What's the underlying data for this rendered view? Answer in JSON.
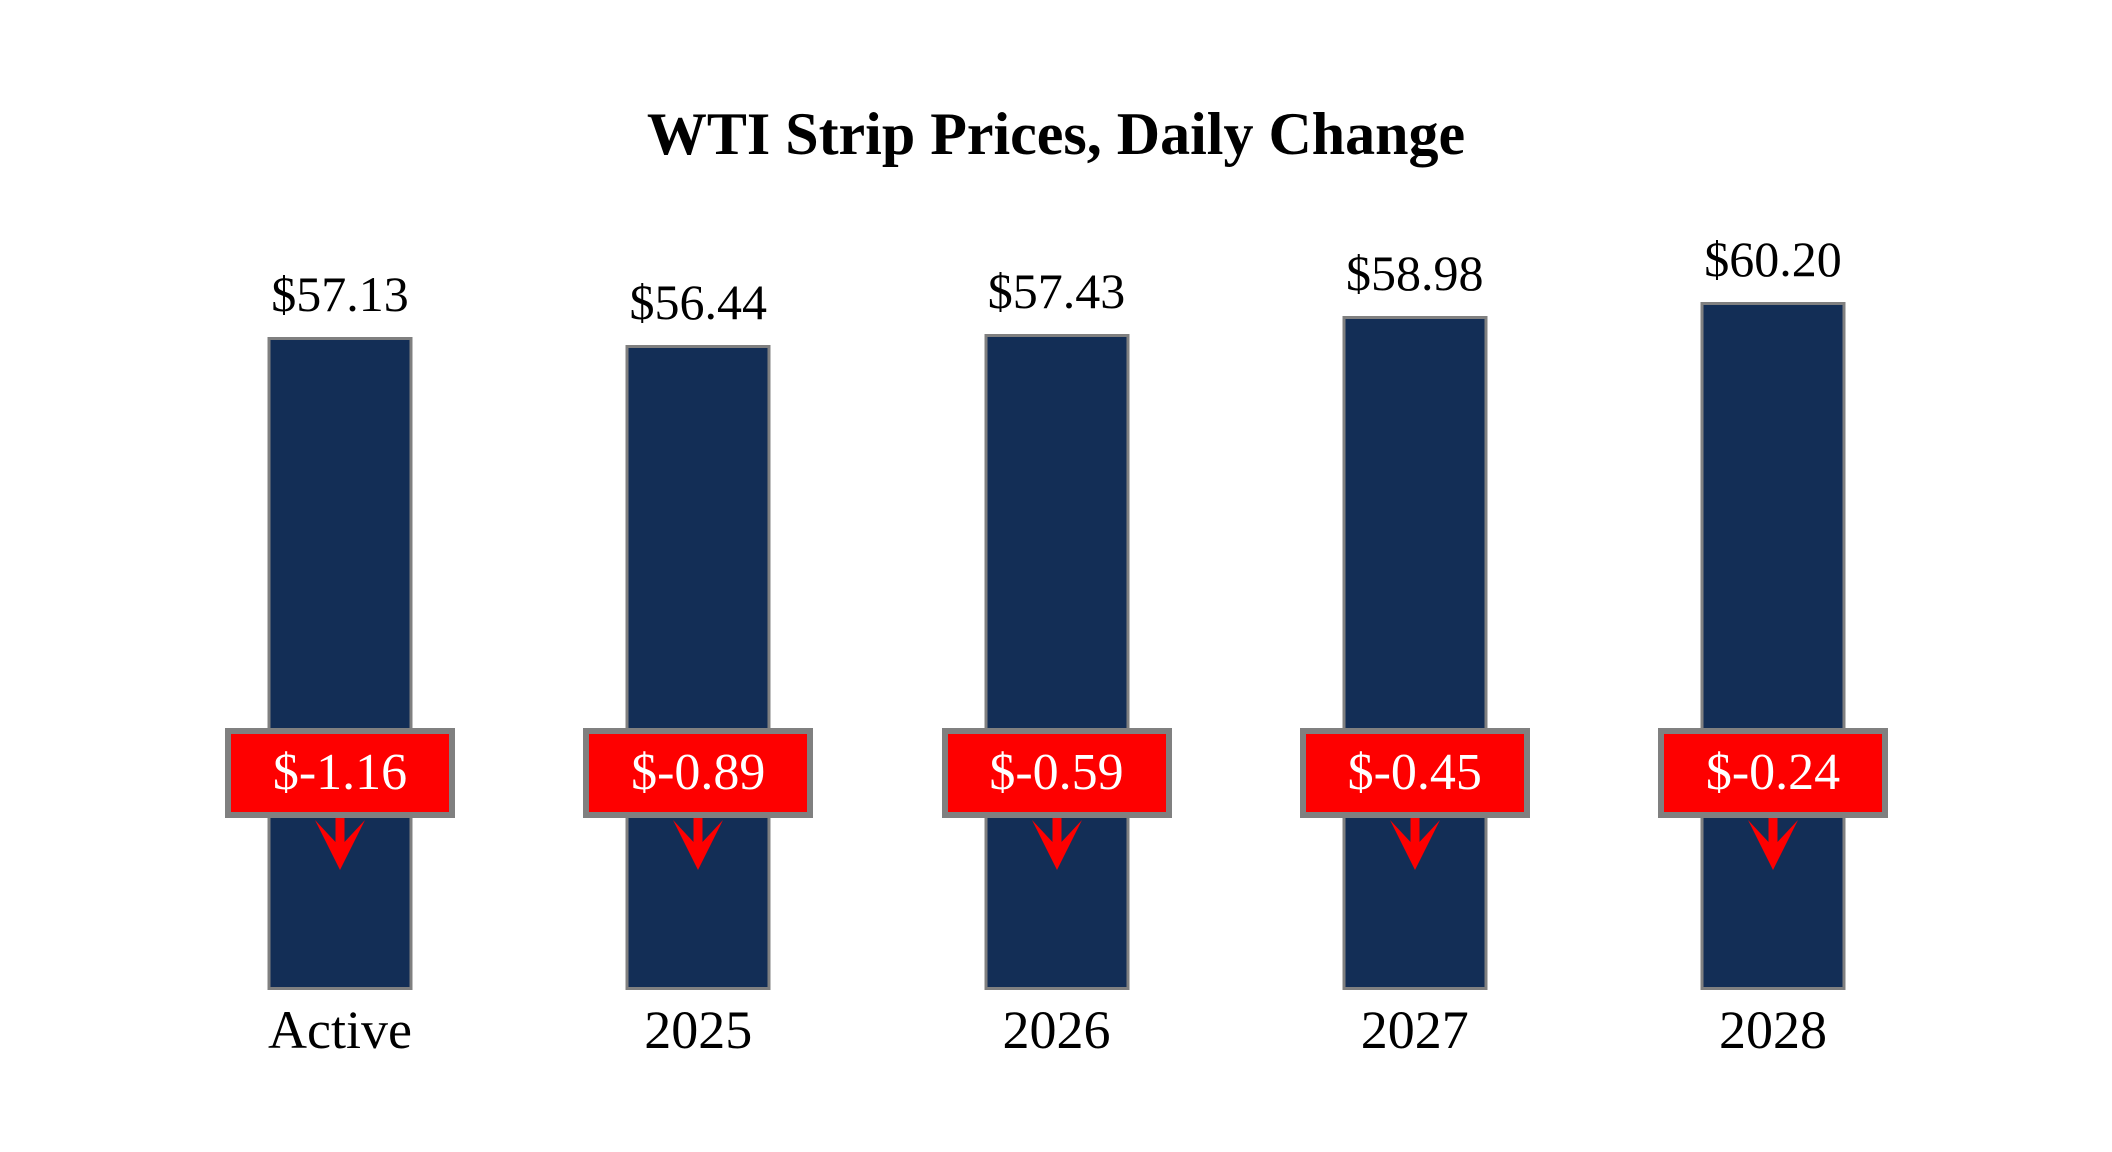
{
  "chart_data": {
    "type": "bar",
    "title": "WTI Strip Prices, Daily Change",
    "categories": [
      "Active",
      "2025",
      "2026",
      "2027",
      "2028"
    ],
    "values": [
      57.13,
      56.44,
      57.43,
      58.98,
      60.2
    ],
    "value_labels": [
      "$57.13",
      "$56.44",
      "$57.43",
      "$58.98",
      "$60.20"
    ],
    "changes": [
      -1.16,
      -0.89,
      -0.59,
      -0.45,
      -0.24
    ],
    "change_labels": [
      "$-1.16",
      "$-0.89",
      "$-0.59",
      "$-0.45",
      "$-0.24"
    ],
    "xlabel": "",
    "ylabel": "",
    "ylim": [
      0,
      62
    ],
    "grid": false,
    "legend": false,
    "axis_visible": false,
    "annotations": "red boxes with daily change values and red down arrows overlaid on each bar",
    "colors": {
      "bar": "#132e56",
      "bar_border": "#808080",
      "change_box": "#fe0000",
      "change_box_border": "#808080",
      "change_text": "#ffffff",
      "arrow": "#fe0000",
      "value_text": "#000000",
      "background": "#ffffff"
    }
  }
}
